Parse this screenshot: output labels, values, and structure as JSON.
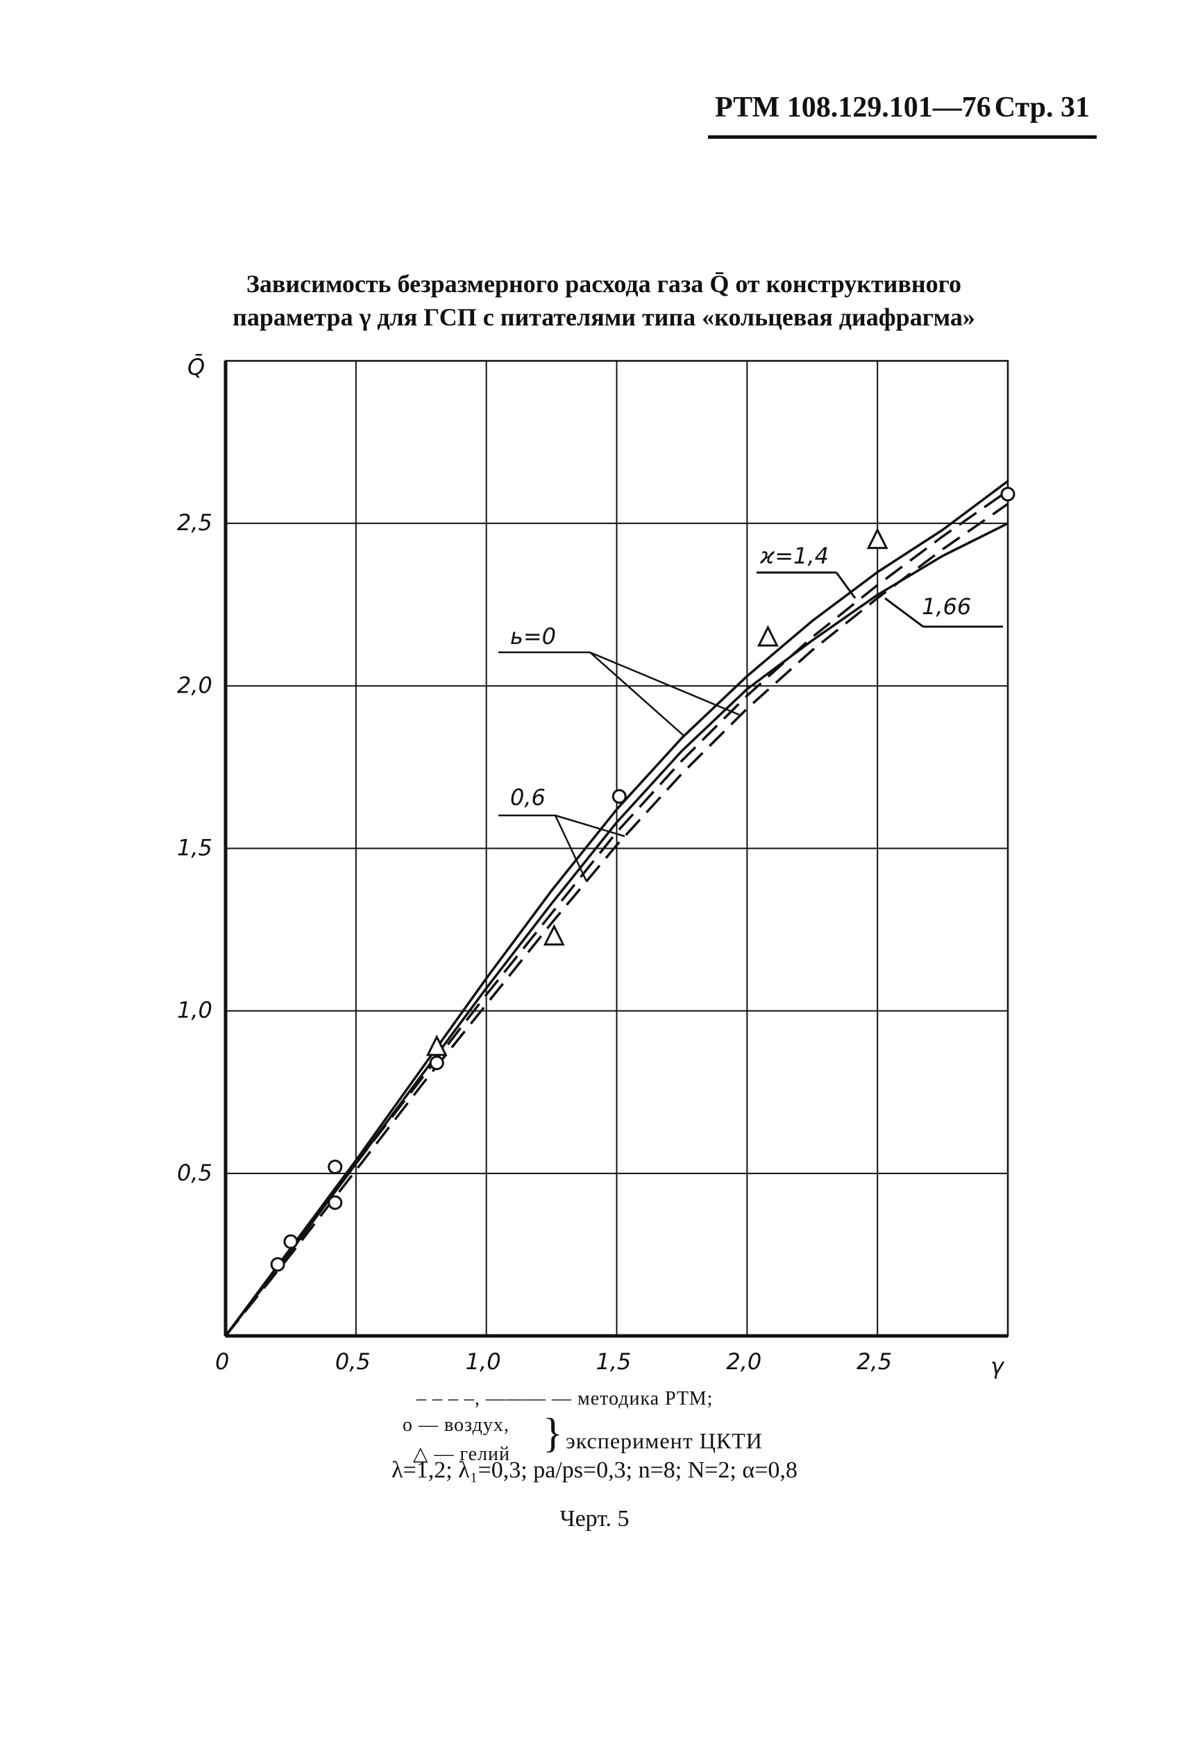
{
  "header": {
    "code": "РТМ 108.129.101—76",
    "page": "Стр. 31"
  },
  "title": "Зависимость безразмерного расхода газа Q̄ от конструктивного параметра γ для ГСП с питателями типа «кольцевая диафрагма»",
  "chart_data": {
    "type": "line",
    "xlabel": "γ",
    "ylabel": "Q̄",
    "xlim": [
      0,
      3.0
    ],
    "ylim": [
      0,
      3.0
    ],
    "grid": true,
    "x_ticks": [
      "0",
      "0,5",
      "1,0",
      "1,5",
      "2,0",
      "2,5"
    ],
    "y_ticks": [
      "0,5",
      "1,0",
      "1,5",
      "2,0",
      "2,5"
    ],
    "series": [
      {
        "style": "solid",
        "x": [
          0,
          0.25,
          0.5,
          0.75,
          1.0,
          1.25,
          1.5,
          1.75,
          2.0,
          2.25,
          2.5,
          2.75,
          3.0
        ],
        "y": [
          0,
          0.27,
          0.54,
          0.82,
          1.1,
          1.37,
          1.62,
          1.84,
          2.03,
          2.2,
          2.35,
          2.48,
          2.63
        ]
      },
      {
        "style": "solid",
        "x": [
          0,
          0.25,
          0.5,
          0.75,
          1.0,
          1.25,
          1.5,
          1.75,
          2.0,
          2.25,
          2.5,
          2.75,
          3.0
        ],
        "y": [
          0,
          0.26,
          0.53,
          0.8,
          1.07,
          1.33,
          1.58,
          1.8,
          1.99,
          2.14,
          2.28,
          2.4,
          2.5
        ]
      },
      {
        "style": "dashed",
        "x": [
          0,
          0.25,
          0.5,
          0.75,
          1.0,
          1.25,
          1.5,
          1.75,
          2.0,
          2.25,
          2.5,
          2.75,
          3.0
        ],
        "y": [
          0,
          0.26,
          0.53,
          0.79,
          1.05,
          1.3,
          1.55,
          1.77,
          1.97,
          2.15,
          2.31,
          2.46,
          2.6
        ]
      },
      {
        "style": "dashed",
        "x": [
          0,
          0.25,
          0.5,
          0.75,
          1.0,
          1.25,
          1.5,
          1.75,
          2.0,
          2.25,
          2.5,
          2.75,
          3.0
        ],
        "y": [
          0,
          0.25,
          0.51,
          0.77,
          1.02,
          1.27,
          1.51,
          1.73,
          1.93,
          2.11,
          2.27,
          2.42,
          2.56
        ]
      }
    ],
    "markers": {
      "air": [
        [
          0.2,
          0.22
        ],
        [
          0.25,
          0.29
        ],
        [
          0.42,
          0.41
        ],
        [
          0.42,
          0.52
        ],
        [
          0.81,
          0.84
        ],
        [
          1.51,
          1.66
        ],
        [
          3.0,
          2.59
        ]
      ],
      "helium": [
        [
          0.81,
          0.89
        ],
        [
          1.26,
          1.23
        ],
        [
          2.08,
          2.15
        ],
        [
          2.5,
          2.45
        ]
      ]
    },
    "annotations": [
      "ϰ=1,4",
      "1,66",
      "ь=0",
      "0,6"
    ]
  },
  "legend": {
    "line_styles": "– – – –,  ———  — методика РТМ;",
    "air": "о — воздух,",
    "helium": "△ — гелий",
    "experiment": "эксперимент ЦКТИ"
  },
  "params": "λ=1,2; λ₁=0,3; pa/ps=0,3; n=8; N=2; α=0,8",
  "caption": "Черт. 5"
}
